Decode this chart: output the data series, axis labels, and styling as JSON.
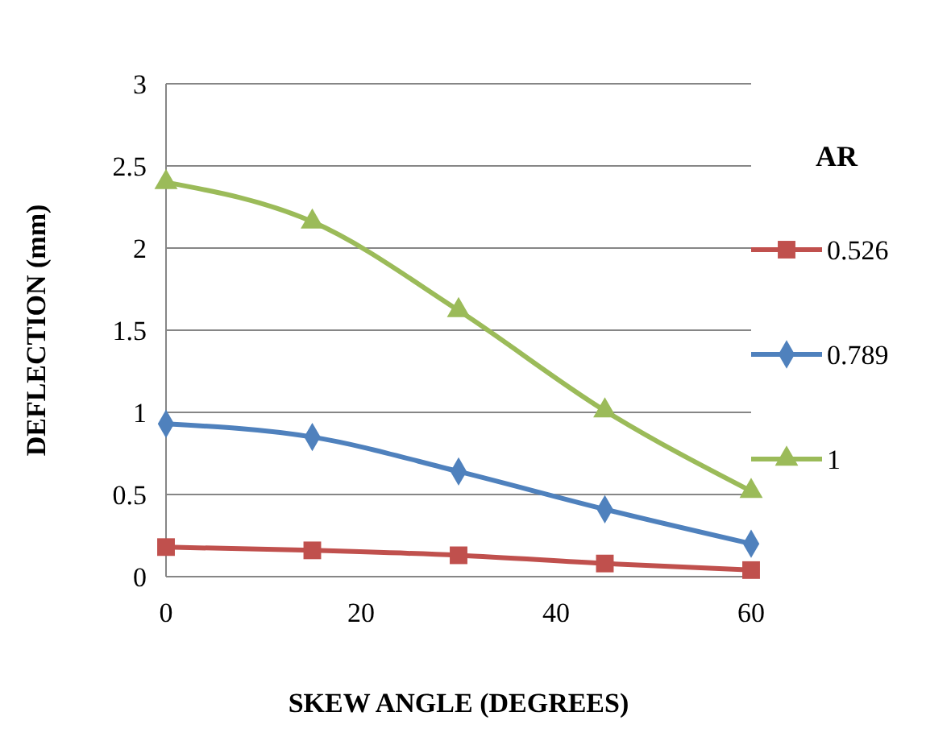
{
  "chart_data": {
    "type": "line",
    "xlabel": "SKEW ANGLE  (DEGREES)",
    "ylabel": "DEFLECTION (mm)",
    "legend_title": "AR",
    "x": [
      0,
      15,
      30,
      45,
      60
    ],
    "series": [
      {
        "name": "0.526",
        "color": "#c0504d",
        "marker": "square",
        "values": [
          0.18,
          0.16,
          0.13,
          0.08,
          0.04
        ]
      },
      {
        "name": "0.789",
        "color": "#4f81bd",
        "marker": "diamond",
        "values": [
          0.93,
          0.85,
          0.64,
          0.41,
          0.2
        ]
      },
      {
        "name": "1",
        "color": "#9bbb59",
        "marker": "triangle",
        "values": [
          2.4,
          2.16,
          1.62,
          1.01,
          0.52
        ]
      }
    ],
    "xlim": [
      0,
      60
    ],
    "xticks": [
      0,
      20,
      40,
      60
    ],
    "ylim": [
      0,
      3
    ],
    "yticks": [
      0,
      0.5,
      1,
      1.5,
      2,
      2.5,
      3
    ],
    "grid": "y",
    "legend": "right"
  }
}
